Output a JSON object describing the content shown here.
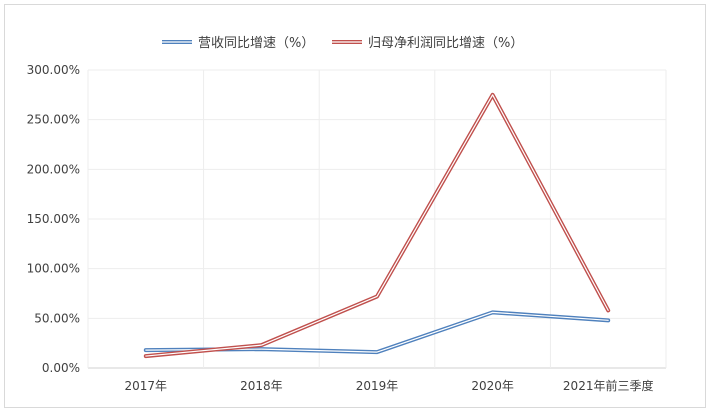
{
  "chart_data": {
    "type": "line",
    "categories": [
      "2017年",
      "2018年",
      "2019年",
      "2020年",
      "2021年前三季度"
    ],
    "series": [
      {
        "name": "营收同比增速（%）",
        "values": [
          0.18,
          0.19,
          0.16,
          0.56,
          0.48
        ],
        "color": "#4f81bd"
      },
      {
        "name": "归母净利润同比增速（%）",
        "values": [
          0.12,
          0.23,
          0.72,
          2.75,
          0.58
        ],
        "color": "#c0504d"
      }
    ],
    "yticks": [
      "0.00%",
      "50.00%",
      "100.00%",
      "150.00%",
      "200.00%",
      "250.00%",
      "300.00%"
    ],
    "ylim": [
      0,
      3
    ],
    "grid": true,
    "legend_position": "top"
  }
}
